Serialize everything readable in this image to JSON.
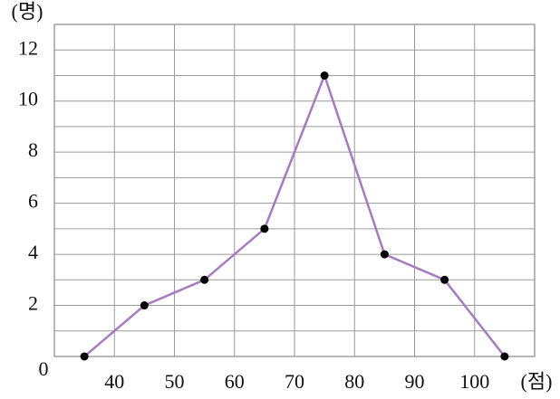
{
  "chart_data": {
    "type": "line",
    "y_label": "(명)",
    "x_label": "(점)",
    "origin_label": "0",
    "x": [
      35,
      45,
      55,
      65,
      75,
      85,
      95,
      105
    ],
    "series": [
      {
        "color": "#a77bc0",
        "values": [
          0,
          2,
          3,
          5,
          11,
          4,
          3,
          0
        ]
      }
    ],
    "xlim": [
      30,
      110
    ],
    "ylim": [
      0,
      13
    ],
    "xticks": [
      40,
      50,
      60,
      70,
      80,
      90,
      100
    ],
    "yticks": [
      2,
      4,
      6,
      8,
      10,
      12
    ],
    "minor_yticks": [
      1,
      3,
      5,
      7,
      9,
      11
    ],
    "grid": true,
    "marker_color": "#000000"
  }
}
